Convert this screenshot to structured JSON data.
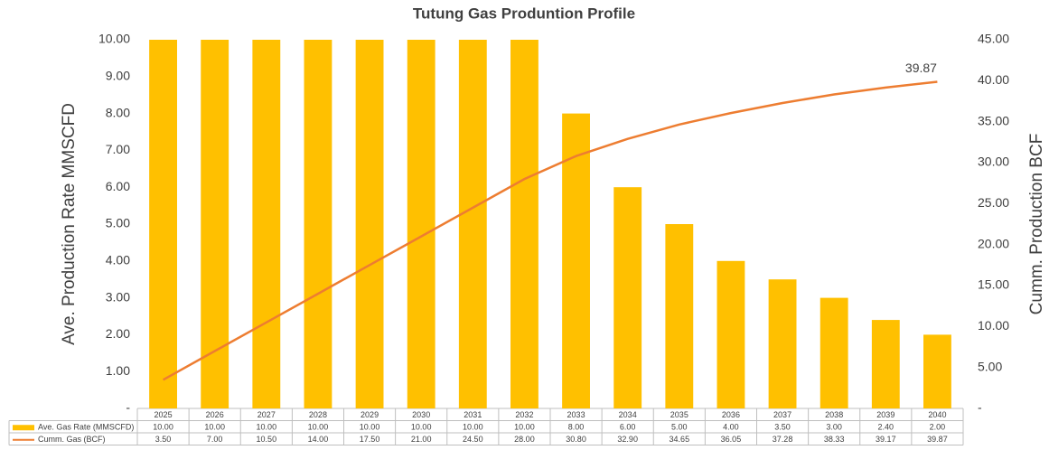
{
  "chart_data": {
    "type": "bar_line",
    "title": "Tutung Gas Produntion Profile",
    "y_label": "Ave. Production Rate MMSCFD",
    "y2_label": "Cumm. Production BCF",
    "categories": [
      "2025",
      "2026",
      "2027",
      "2028",
      "2029",
      "2030",
      "2031",
      "2032",
      "2033",
      "2034",
      "2035",
      "2036",
      "2037",
      "2038",
      "2039",
      "2040"
    ],
    "series": [
      {
        "name": "Ave. Gas Rate (MMSCFD)",
        "type": "bar",
        "color": "#FFC000",
        "values": [
          10,
          10,
          10,
          10,
          10,
          10,
          10,
          10,
          8,
          6,
          5,
          4,
          3.5,
          3,
          2.4,
          2
        ],
        "value_labels": [
          "10.00",
          "10.00",
          "10.00",
          "10.00",
          "10.00",
          "10.00",
          "10.00",
          "10.00",
          "8.00",
          "6.00",
          "5.00",
          "4.00",
          "3.50",
          "3.00",
          "2.40",
          "2.00"
        ]
      },
      {
        "name": "Cumm. Gas (BCF)",
        "type": "line",
        "axis": "y2",
        "color": "#ED7D31",
        "values": [
          3.5,
          7,
          10.5,
          14,
          17.5,
          21,
          24.5,
          28,
          30.8,
          32.9,
          34.65,
          36.05,
          37.28,
          38.33,
          39.17,
          39.87
        ],
        "value_labels": [
          "3.50",
          "7.00",
          "10.50",
          "14.00",
          "17.50",
          "21.00",
          "24.50",
          "28.00",
          "30.80",
          "32.90",
          "34.65",
          "36.05",
          "37.28",
          "38.33",
          "39.17",
          "39.87"
        ]
      }
    ],
    "ylim": [
      0,
      10
    ],
    "yticks": [
      {
        "value": 0,
        "label": "-"
      },
      {
        "value": 1,
        "label": "1.00"
      },
      {
        "value": 2,
        "label": "2.00"
      },
      {
        "value": 3,
        "label": "3.00"
      },
      {
        "value": 4,
        "label": "4.00"
      },
      {
        "value": 5,
        "label": "5.00"
      },
      {
        "value": 6,
        "label": "6.00"
      },
      {
        "value": 7,
        "label": "7.00"
      },
      {
        "value": 8,
        "label": "8.00"
      },
      {
        "value": 9,
        "label": "9.00"
      },
      {
        "value": 10,
        "label": "10.00"
      }
    ],
    "y2lim": [
      0,
      45
    ],
    "y2ticks": [
      {
        "value": 0,
        "label": "-"
      },
      {
        "value": 5,
        "label": "5.00"
      },
      {
        "value": 10,
        "label": "10.00"
      },
      {
        "value": 15,
        "label": "15.00"
      },
      {
        "value": 20,
        "label": "20.00"
      },
      {
        "value": 25,
        "label": "25.00"
      },
      {
        "value": 30,
        "label": "30.00"
      },
      {
        "value": 35,
        "label": "35.00"
      },
      {
        "value": 40,
        "label": "40.00"
      },
      {
        "value": 45,
        "label": "45.00"
      }
    ],
    "grid": false
  }
}
